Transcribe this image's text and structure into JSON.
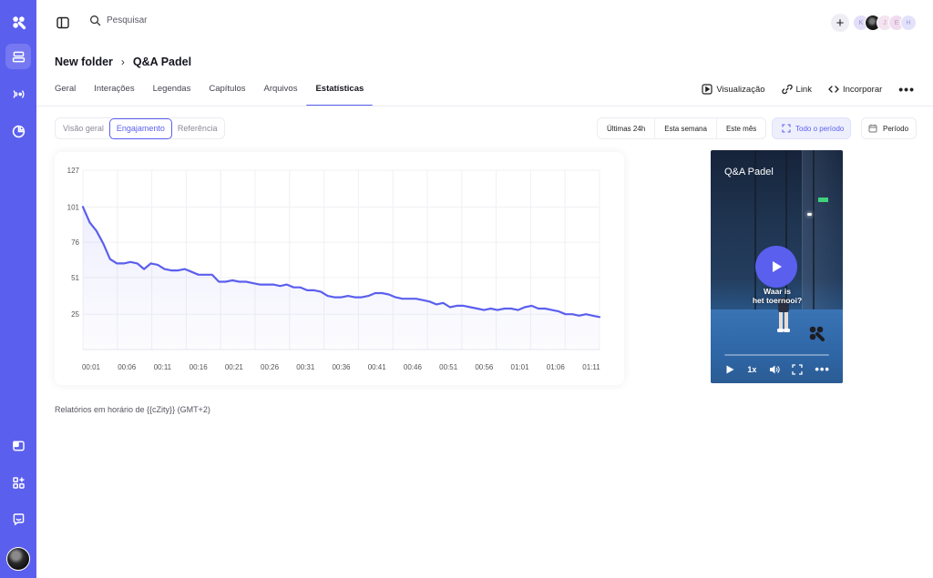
{
  "app": {
    "accent": "#5b5fee",
    "rail_icons": [
      "logo-icon",
      "library-icon",
      "broadcast-icon",
      "analytics-icon",
      "embed-icon",
      "apps-icon",
      "chat-icon"
    ]
  },
  "topbar": {
    "search_placeholder": "Pesquisar",
    "avatars": [
      "K",
      "",
      "J",
      "E",
      "H"
    ]
  },
  "breadcrumb": {
    "folder": "New folder",
    "separator": "›",
    "current": "Q&A Padel"
  },
  "tabs": [
    "Geral",
    "Interações",
    "Legendas",
    "Capítulos",
    "Arquivos",
    "Estatísticas"
  ],
  "active_tab": "Estatísticas",
  "actions": {
    "preview": "Visualização",
    "link": "Link",
    "embed": "Incorporar"
  },
  "subtabs": [
    "Visão geral",
    "Engajamento",
    "Referência"
  ],
  "active_subtab": "Engajamento",
  "ranges": [
    "Últimas 24h",
    "Esta semana",
    "Este mês"
  ],
  "all_period": "Todo o período",
  "period": "Período",
  "chart_data": {
    "type": "area",
    "title": "",
    "xlabel": "",
    "ylabel": "",
    "ylim": [
      0,
      127
    ],
    "yticks": [
      25,
      51,
      76,
      101,
      127
    ],
    "xticks": [
      "00:01",
      "00:06",
      "00:11",
      "00:16",
      "00:21",
      "00:26",
      "00:31",
      "00:36",
      "00:41",
      "00:46",
      "00:51",
      "00:56",
      "01:01",
      "01:06",
      "01:11"
    ],
    "grid": true,
    "series": [
      {
        "values": [
          101,
          90,
          84,
          75,
          64,
          61,
          61,
          62,
          61,
          57,
          61,
          60,
          57,
          56,
          56,
          57,
          55,
          53,
          53,
          53,
          48,
          48,
          49,
          48,
          48,
          47,
          46,
          46,
          46,
          45,
          46,
          44,
          44,
          42,
          42,
          41,
          38,
          37,
          37,
          38,
          37,
          37,
          38,
          40,
          40,
          39,
          37,
          36,
          36,
          36,
          35,
          34,
          32,
          33,
          30,
          31,
          31,
          30,
          29,
          28,
          29,
          28,
          29,
          29,
          28,
          30,
          31,
          29,
          29,
          28,
          27,
          25,
          25,
          24,
          25,
          24,
          23
        ]
      }
    ]
  },
  "footnote": "Relatórios em horário de {{cZity}} (GMT+2)",
  "video": {
    "title": "Q&A Padel",
    "caption_line1": "Waar is",
    "caption_line2": "het toernooi?",
    "speed": "1x"
  }
}
